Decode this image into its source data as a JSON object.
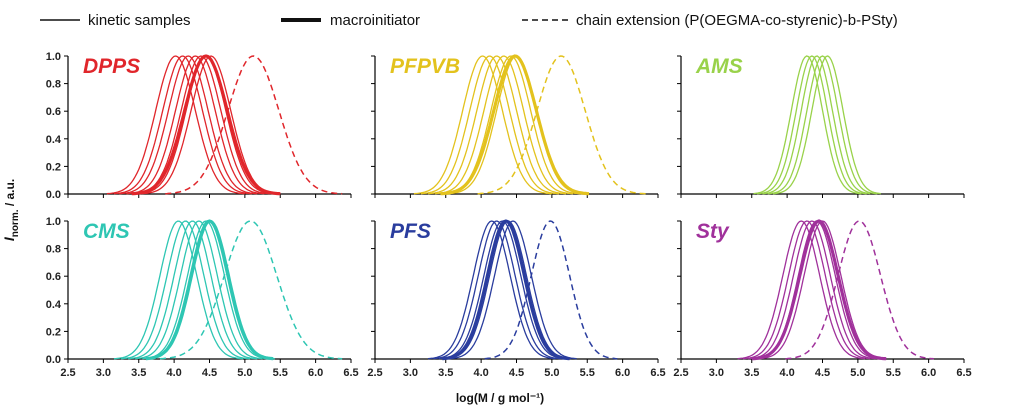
{
  "legend": {
    "kinetic_label": "kinetic samples",
    "macro_label": "macroinitiator",
    "chain_label": "chain extension (P(OEGMA-co-styrenic)-b-PSty)"
  },
  "axes": {
    "y_label": "I",
    "y_label_sub": "norm.",
    "y_label_suffix": " / a.u.",
    "x_label": "log(M / g mol⁻¹)"
  },
  "chart_data": {
    "type": "line",
    "xlim": [
      2.5,
      6.5
    ],
    "ylim": [
      0,
      1.0
    ],
    "x_ticks": [
      "2.5",
      "3.0",
      "3.5",
      "4.0",
      "4.5",
      "5.0",
      "5.5",
      "6.0",
      "6.5"
    ],
    "y_ticks": [
      "0.0",
      "0.2",
      "0.4",
      "0.6",
      "0.8",
      "1.0"
    ],
    "panels": [
      {
        "label": "DPPS",
        "color": "#e0262b",
        "kinetic_peaks": [
          4.02,
          4.12,
          4.2,
          4.3,
          4.38,
          4.45,
          4.52
        ],
        "kinetic_width": 0.28,
        "macroinitiator_peak": 4.45,
        "macroinitiator_width": 0.3,
        "chain_extension_peak": 5.12,
        "chain_extension_width": 0.36
      },
      {
        "label": "PFPVB",
        "color": "#e3c21d",
        "kinetic_peaks": [
          4.02,
          4.12,
          4.22,
          4.32,
          4.42,
          4.5
        ],
        "kinetic_width": 0.28,
        "macroinitiator_peak": 4.48,
        "macroinitiator_width": 0.3,
        "chain_extension_peak": 5.13,
        "chain_extension_width": 0.34
      },
      {
        "label": "AMS",
        "color": "#99d24a",
        "kinetic_peaks": [
          4.28,
          4.35,
          4.42,
          4.5,
          4.57
        ],
        "kinetic_width": 0.22,
        "macroinitiator_peak": null,
        "chain_extension_peak": null
      },
      {
        "label": "CMS",
        "color": "#2ec6b3",
        "kinetic_peaks": [
          4.06,
          4.16,
          4.26,
          4.35,
          4.45,
          4.52
        ],
        "kinetic_width": 0.26,
        "macroinitiator_peak": 4.5,
        "macroinitiator_width": 0.26,
        "chain_extension_peak": 5.08,
        "chain_extension_width": 0.37
      },
      {
        "label": "PFS",
        "color": "#2a3d9e",
        "kinetic_peaks": [
          4.15,
          4.22,
          4.3,
          4.38,
          4.45
        ],
        "kinetic_width": 0.26,
        "macroinitiator_peak": 4.35,
        "macroinitiator_width": 0.26,
        "chain_extension_peak": 4.98,
        "chain_extension_width": 0.27
      },
      {
        "label": "Sty",
        "color": "#a0319b",
        "kinetic_peaks": [
          4.2,
          4.28,
          4.35,
          4.42,
          4.5
        ],
        "kinetic_width": 0.26,
        "macroinitiator_peak": 4.45,
        "macroinitiator_width": 0.27,
        "chain_extension_peak": 5.02,
        "chain_extension_width": 0.3
      }
    ]
  }
}
